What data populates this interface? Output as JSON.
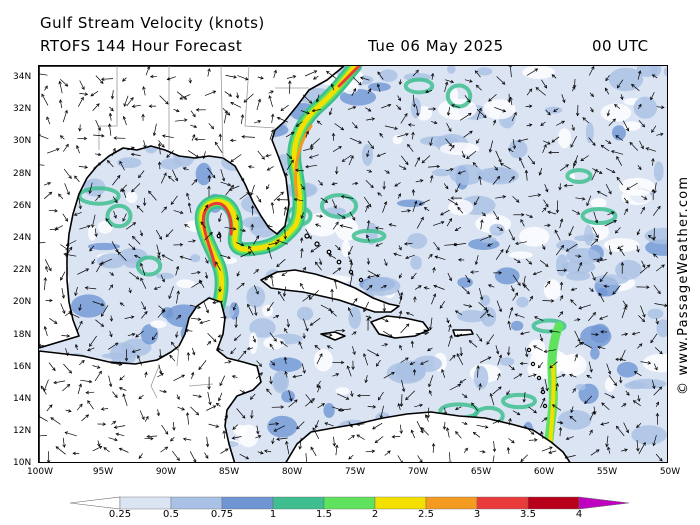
{
  "header": {
    "title": "Gulf Stream Velocity (knots)",
    "model": "RTOFS 144 Hour Forecast",
    "date": "Tue 06 May 2025",
    "time": "00 UTC"
  },
  "credit": "© www.PassageWeather.com",
  "axes": {
    "lat_labels": [
      "34N",
      "32N",
      "30N",
      "28N",
      "26N",
      "24N",
      "22N",
      "20N",
      "18N",
      "16N",
      "14N",
      "12N",
      "10N"
    ],
    "lon_labels": [
      "100W",
      "95W",
      "90W",
      "85W",
      "80W",
      "75W",
      "70W",
      "65W",
      "60W",
      "55W",
      "50W"
    ]
  },
  "colorbar": {
    "labels": [
      "0.25",
      "0.5",
      "0.75",
      "1",
      "1.5",
      "2",
      "2.5",
      "3",
      "3.5",
      "4"
    ],
    "colors": [
      "#ffffff",
      "#dbe4f3",
      "#a9c1e4",
      "#6f96d3",
      "#3fbf8f",
      "#5fe35f",
      "#f3e000",
      "#f59a20",
      "#ea3b3b",
      "#b8001a",
      "#c000c0"
    ]
  },
  "colors": {
    "coast": "#000000",
    "borders": "#9a9a9a",
    "arrows": "#000000",
    "land": "#ffffff"
  }
}
